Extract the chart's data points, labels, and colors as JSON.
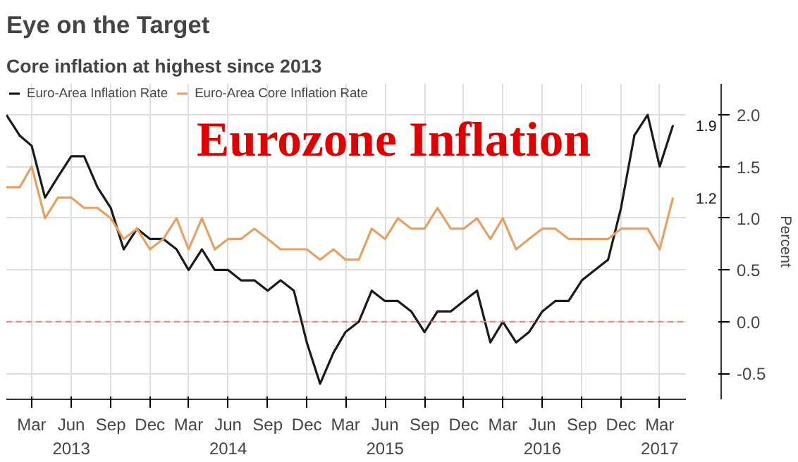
{
  "chart_data": {
    "type": "line",
    "title": "Eye on the Target",
    "subtitle": "Core inflation at highest since 2013",
    "ylabel": "Percent",
    "annotations": [
      "Eurozone Inflation"
    ],
    "x": [
      "2013-01",
      "2013-02",
      "2013-03",
      "2013-04",
      "2013-05",
      "2013-06",
      "2013-07",
      "2013-08",
      "2013-09",
      "2013-10",
      "2013-11",
      "2013-12",
      "2014-01",
      "2014-02",
      "2014-03",
      "2014-04",
      "2014-05",
      "2014-06",
      "2014-07",
      "2014-08",
      "2014-09",
      "2014-10",
      "2014-11",
      "2014-12",
      "2015-01",
      "2015-02",
      "2015-03",
      "2015-04",
      "2015-05",
      "2015-06",
      "2015-07",
      "2015-08",
      "2015-09",
      "2015-10",
      "2015-11",
      "2015-12",
      "2016-01",
      "2016-02",
      "2016-03",
      "2016-04",
      "2016-05",
      "2016-06",
      "2016-07",
      "2016-08",
      "2016-09",
      "2016-10",
      "2016-11",
      "2016-12",
      "2017-01",
      "2017-02",
      "2017-03",
      "2017-04"
    ],
    "series": [
      {
        "name": "Euro-Area Inflation Rate",
        "color": "#1a1a1a",
        "values": [
          2.0,
          1.8,
          1.7,
          1.2,
          1.4,
          1.6,
          1.6,
          1.3,
          1.1,
          0.7,
          0.9,
          0.8,
          0.8,
          0.7,
          0.5,
          0.7,
          0.5,
          0.5,
          0.4,
          0.4,
          0.3,
          0.4,
          0.3,
          -0.2,
          -0.6,
          -0.3,
          -0.1,
          0.0,
          0.3,
          0.2,
          0.2,
          0.1,
          -0.1,
          0.1,
          0.1,
          0.2,
          0.3,
          -0.2,
          0.0,
          -0.2,
          -0.1,
          0.1,
          0.2,
          0.2,
          0.4,
          0.5,
          0.6,
          1.1,
          1.8,
          2.0,
          1.5,
          1.9
        ],
        "value_labels": [
          null,
          null,
          null,
          null,
          null,
          null,
          null,
          null,
          null,
          null,
          null,
          null,
          null,
          null,
          null,
          null,
          null,
          null,
          null,
          null,
          null,
          null,
          null,
          null,
          null,
          null,
          null,
          null,
          null,
          null,
          null,
          null,
          null,
          null,
          null,
          null,
          null,
          null,
          null,
          null,
          null,
          null,
          null,
          null,
          null,
          null,
          null,
          null,
          null,
          null,
          null,
          "1.9"
        ]
      },
      {
        "name": "Euro-Area Core Inflation Rate",
        "color": "#e8a060",
        "values": [
          1.3,
          1.3,
          1.5,
          1.0,
          1.2,
          1.2,
          1.1,
          1.1,
          1.0,
          0.8,
          0.9,
          0.7,
          0.8,
          1.0,
          0.7,
          1.0,
          0.7,
          0.8,
          0.8,
          0.9,
          0.8,
          0.7,
          0.7,
          0.7,
          0.6,
          0.7,
          0.6,
          0.6,
          0.9,
          0.8,
          1.0,
          0.9,
          0.9,
          1.1,
          0.9,
          0.9,
          1.0,
          0.8,
          1.0,
          0.7,
          0.8,
          0.9,
          0.9,
          0.8,
          0.8,
          0.8,
          0.8,
          0.9,
          0.9,
          0.9,
          0.7,
          1.2
        ],
        "value_labels": [
          null,
          null,
          null,
          null,
          null,
          null,
          null,
          null,
          null,
          null,
          null,
          null,
          null,
          null,
          null,
          null,
          null,
          null,
          null,
          null,
          null,
          null,
          null,
          null,
          null,
          null,
          null,
          null,
          null,
          null,
          null,
          null,
          null,
          null,
          null,
          null,
          null,
          null,
          null,
          null,
          null,
          null,
          null,
          null,
          null,
          null,
          null,
          null,
          null,
          null,
          null,
          "1.2"
        ]
      }
    ],
    "xlim": [
      "2013-01",
      "2017-05"
    ],
    "xticks": [
      {
        "value": "2013-03",
        "label": "Mar"
      },
      {
        "value": "2013-06",
        "label": "Jun\n2013"
      },
      {
        "value": "2013-09",
        "label": "Sep"
      },
      {
        "value": "2013-12",
        "label": "Dec"
      },
      {
        "value": "2014-03",
        "label": "Mar"
      },
      {
        "value": "2014-06",
        "label": "Jun\n2014"
      },
      {
        "value": "2014-09",
        "label": "Sep"
      },
      {
        "value": "2014-12",
        "label": "Dec"
      },
      {
        "value": "2015-03",
        "label": "Mar"
      },
      {
        "value": "2015-06",
        "label": "Jun\n2015"
      },
      {
        "value": "2015-09",
        "label": "Sep"
      },
      {
        "value": "2015-12",
        "label": "Dec"
      },
      {
        "value": "2016-03",
        "label": "Mar"
      },
      {
        "value": "2016-06",
        "label": "Jun\n2016"
      },
      {
        "value": "2016-09",
        "label": "Sep"
      },
      {
        "value": "2016-12",
        "label": "Dec"
      },
      {
        "value": "2017-03",
        "label": "Mar\n2017"
      }
    ],
    "ylim": [
      -0.75,
      2.3
    ],
    "yticks": [
      {
        "value": -0.5,
        "label": "-0.5"
      },
      {
        "value": 0,
        "label": "0.0"
      },
      {
        "value": 0.5,
        "label": "0.5"
      },
      {
        "value": 1,
        "label": "1.0"
      },
      {
        "value": 1.5,
        "label": "1.5"
      },
      {
        "value": 2,
        "label": "2.0"
      }
    ],
    "ref_lines": [
      {
        "axis": "y",
        "value": 0,
        "color": "#f08080",
        "line_style": "dashed"
      }
    ],
    "grid": true,
    "legend": "top left",
    "marker": "none",
    "line_style": "solid"
  }
}
